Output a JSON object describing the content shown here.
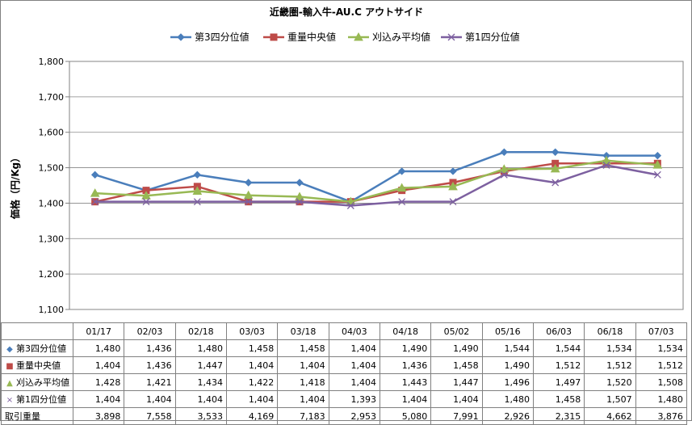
{
  "chart_data": {
    "type": "line",
    "title": "近畿圏-輸入牛-AU.C アウトサイド",
    "ylabel": "価格（円/Kg）",
    "ylim": [
      1100,
      1800
    ],
    "yticks": [
      1100,
      1200,
      1300,
      1400,
      1500,
      1600,
      1700,
      1800
    ],
    "ytick_labels": [
      "1,100",
      "1,200",
      "1,300",
      "1,400",
      "1,500",
      "1,600",
      "1,700",
      "1,800"
    ],
    "categories": [
      "01/17",
      "02/03",
      "02/18",
      "03/03",
      "03/18",
      "04/03",
      "04/18",
      "05/02",
      "05/16",
      "06/03",
      "06/18",
      "07/03"
    ],
    "legend_position": "top",
    "grid": true,
    "series": [
      {
        "name": "第3四分位値",
        "color": "#4a7ebb",
        "marker": "diamond",
        "values": [
          1480,
          1436,
          1480,
          1458,
          1458,
          1404,
          1490,
          1490,
          1544,
          1544,
          1534,
          1534
        ],
        "labels": [
          "1,480",
          "1,436",
          "1,480",
          "1,458",
          "1,458",
          "1,404",
          "1,490",
          "1,490",
          "1,544",
          "1,544",
          "1,534",
          "1,534"
        ]
      },
      {
        "name": "重量中央値",
        "color": "#be4b48",
        "marker": "square",
        "values": [
          1404,
          1436,
          1447,
          1404,
          1404,
          1404,
          1436,
          1458,
          1490,
          1512,
          1512,
          1512
        ],
        "labels": [
          "1,404",
          "1,436",
          "1,447",
          "1,404",
          "1,404",
          "1,404",
          "1,436",
          "1,458",
          "1,490",
          "1,512",
          "1,512",
          "1,512"
        ]
      },
      {
        "name": "刈込み平均値",
        "color": "#98b954",
        "marker": "triangle",
        "values": [
          1428,
          1421,
          1434,
          1422,
          1418,
          1404,
          1443,
          1447,
          1496,
          1497,
          1520,
          1508
        ],
        "labels": [
          "1,428",
          "1,421",
          "1,434",
          "1,422",
          "1,418",
          "1,404",
          "1,443",
          "1,447",
          "1,496",
          "1,497",
          "1,520",
          "1,508"
        ]
      },
      {
        "name": "第1四分位値",
        "color": "#7d60a0",
        "marker": "x",
        "values": [
          1404,
          1404,
          1404,
          1404,
          1404,
          1393,
          1404,
          1404,
          1480,
          1458,
          1507,
          1480
        ],
        "labels": [
          "1,404",
          "1,404",
          "1,404",
          "1,404",
          "1,404",
          "1,393",
          "1,404",
          "1,404",
          "1,480",
          "1,458",
          "1,507",
          "1,480"
        ]
      }
    ],
    "volume": {
      "name": "取引重量",
      "labels": [
        "3,898",
        "7,558",
        "3,533",
        "4,169",
        "7,183",
        "2,953",
        "5,080",
        "7,991",
        "2,926",
        "2,315",
        "4,662",
        "3,876"
      ]
    }
  }
}
